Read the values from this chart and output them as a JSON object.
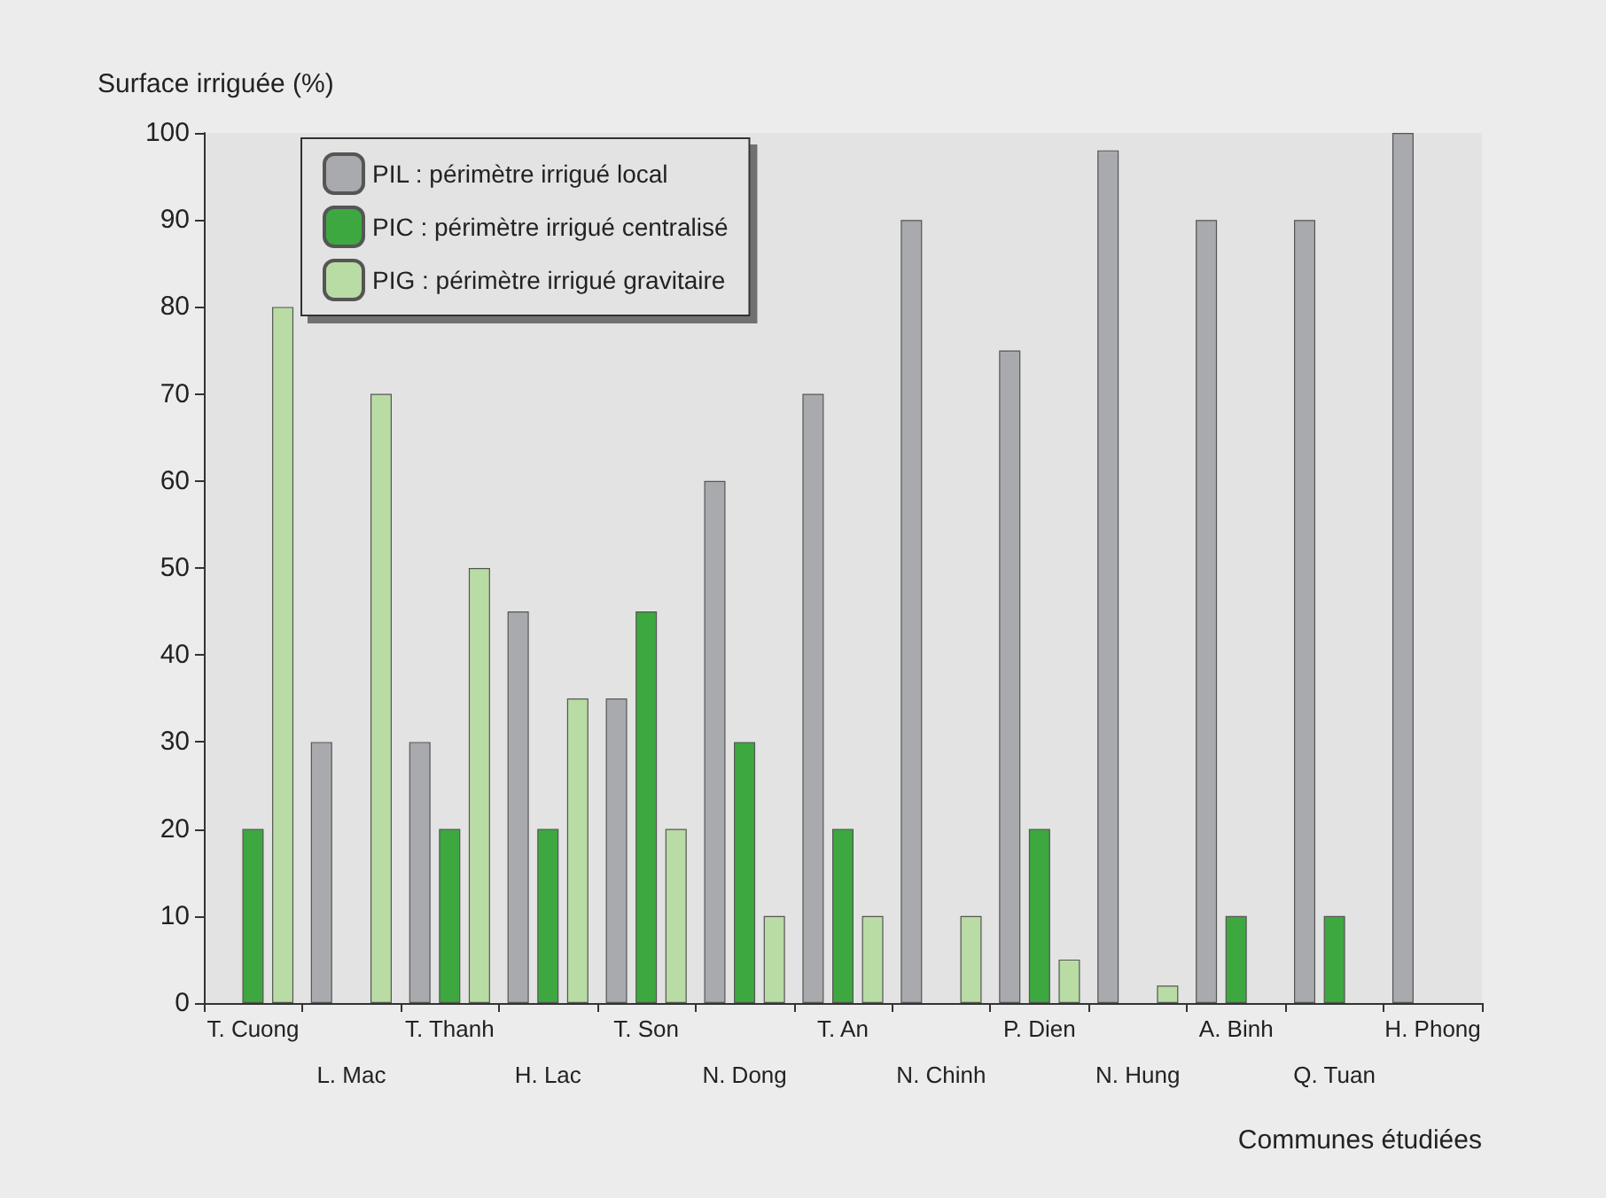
{
  "chart_data": {
    "type": "bar",
    "xlabel": "Communes étudiées",
    "ylabel": "Surface irriguée (%)",
    "categories": [
      "T. Cuong",
      "L. Mac",
      "T. Thanh",
      "H. Lac",
      "T. Son",
      "N. Dong",
      "T. An",
      "N. Chinh",
      "P. Dien",
      "N. Hung",
      "A. Binh",
      "Q. Tuan",
      "H. Phong"
    ],
    "series": [
      {
        "name": "PIL : périmètre irrigué local",
        "color": "#a9aaae",
        "values": [
          null,
          30,
          30,
          45,
          35,
          60,
          70,
          90,
          75,
          98,
          90,
          90,
          100
        ]
      },
      {
        "name": "PIC : périmètre irrigué centralisé",
        "color": "#3da83f",
        "values": [
          20,
          null,
          20,
          20,
          45,
          30,
          20,
          null,
          20,
          null,
          10,
          10,
          null
        ]
      },
      {
        "name": "PIG : périmètre irrigué gravitaire",
        "color": "#b8dca4",
        "values": [
          80,
          70,
          50,
          35,
          20,
          10,
          10,
          10,
          5,
          2,
          null,
          null,
          null
        ]
      }
    ],
    "ylim": [
      0,
      100
    ],
    "yticks": [
      0,
      10,
      20,
      30,
      40,
      50,
      60,
      70,
      80,
      90,
      100
    ],
    "grid": false,
    "legend": "top left"
  }
}
